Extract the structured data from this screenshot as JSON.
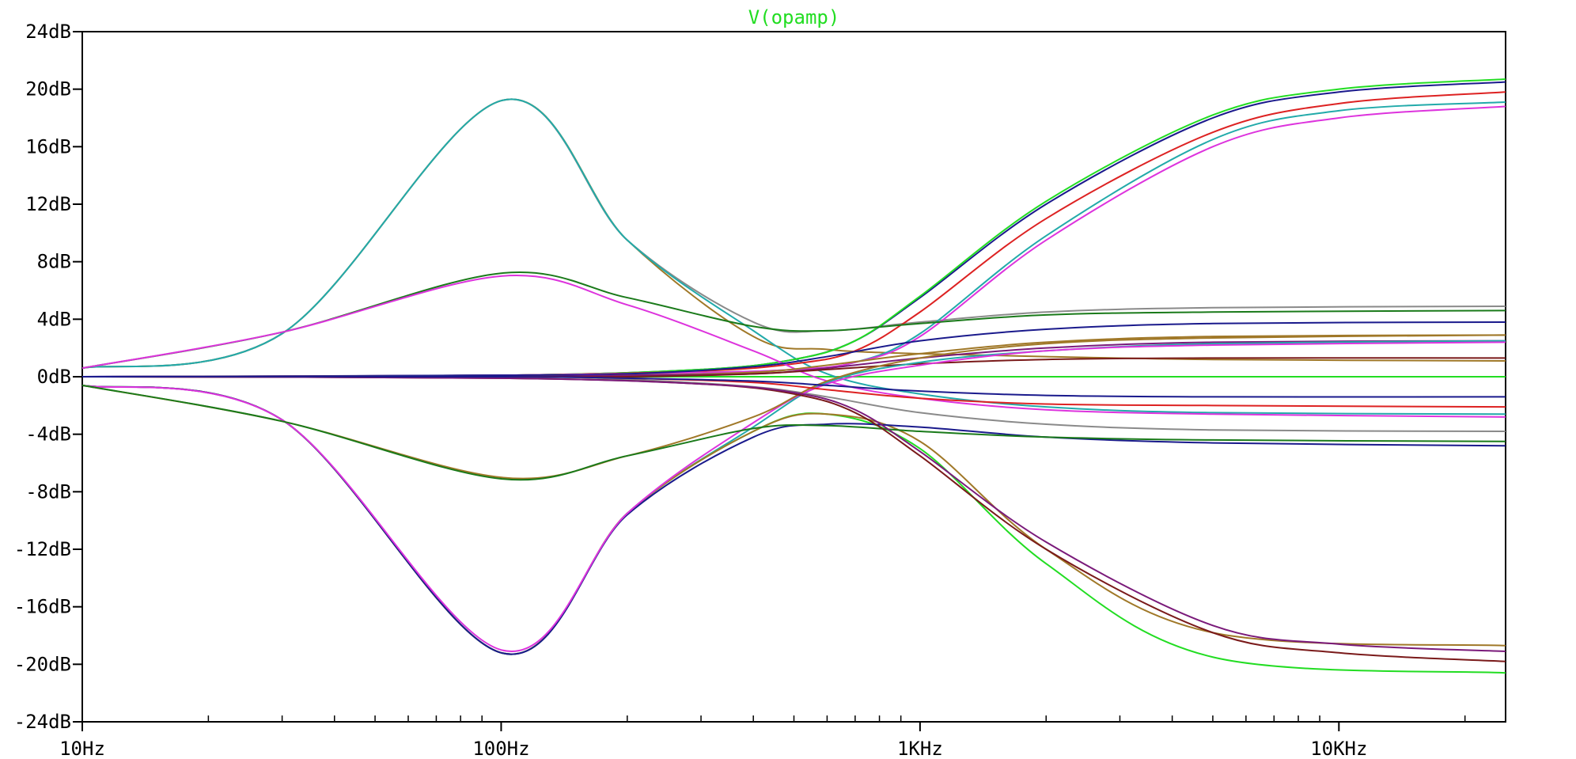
{
  "chart_data": {
    "type": "line",
    "title": "V(opamp)",
    "title_color": "#22dd22",
    "x_scale": "log",
    "xlim": [
      10,
      25000
    ],
    "ylim": [
      -24,
      24
    ],
    "x_ticks": [
      10,
      100,
      1000,
      10000
    ],
    "x_tick_labels": [
      "10Hz",
      "100Hz",
      "1KHz",
      "10KHz"
    ],
    "y_ticks": [
      24,
      20,
      16,
      12,
      8,
      4,
      0,
      -4,
      -8,
      -12,
      -16,
      -20,
      -24
    ],
    "y_tick_labels": [
      "24dB",
      "20dB",
      "16dB",
      "12dB",
      "8dB",
      "4dB",
      "0dB",
      "-4dB",
      "-8dB",
      "-12dB",
      "-16dB",
      "-20dB",
      "-24dB"
    ],
    "grid": false,
    "series": [
      {
        "color": "#22dd22",
        "x": [
          10,
          25000
        ],
        "y": [
          0,
          0
        ]
      },
      {
        "color": "#8a8a8a",
        "x": [
          10,
          30,
          100,
          200,
          400,
          600,
          1000,
          2000,
          5000,
          25000
        ],
        "y": [
          0.6,
          3.0,
          19.2,
          9.5,
          3.8,
          3.2,
          3.8,
          4.5,
          4.8,
          4.9
        ]
      },
      {
        "color": "#a07828",
        "x": [
          10,
          30,
          100,
          200,
          400,
          600,
          1000,
          2000,
          5000,
          25000
        ],
        "y": [
          0.6,
          3.0,
          19.2,
          9.5,
          2.8,
          1.9,
          1.6,
          1.4,
          1.2,
          1.1
        ]
      },
      {
        "color": "#22aaaa",
        "x": [
          10,
          30,
          100,
          200,
          400,
          600,
          1000,
          2000,
          5000,
          25000
        ],
        "y": [
          0.6,
          3.0,
          19.2,
          9.5,
          3.2,
          0.2,
          -1.2,
          -2.1,
          -2.5,
          -2.6
        ]
      },
      {
        "color": "#1a1a8c",
        "x": [
          10,
          100,
          300,
          500,
          700,
          1000,
          2000,
          5000,
          10000,
          25000
        ],
        "y": [
          0.0,
          0.1,
          0.5,
          1.2,
          2.5,
          5.5,
          12.0,
          18.0,
          19.8,
          20.5
        ]
      },
      {
        "color": "#22dd22",
        "x": [
          10,
          100,
          300,
          500,
          700,
          1000,
          2000,
          5000,
          10000,
          25000
        ],
        "y": [
          0.0,
          0.1,
          0.5,
          1.2,
          2.5,
          5.6,
          12.2,
          18.2,
          20.0,
          20.7
        ]
      },
      {
        "color": "#dd2222",
        "x": [
          10,
          100,
          300,
          500,
          700,
          1000,
          2000,
          5000,
          10000,
          25000
        ],
        "y": [
          0.0,
          0.1,
          0.4,
          0.9,
          1.8,
          4.5,
          11.0,
          17.0,
          19.0,
          19.8
        ]
      },
      {
        "color": "#22aaaa",
        "x": [
          10,
          100,
          300,
          500,
          700,
          1000,
          2000,
          5000,
          10000,
          25000
        ],
        "y": [
          0.0,
          0.1,
          0.3,
          0.5,
          1.0,
          3.0,
          9.8,
          16.5,
          18.5,
          19.1
        ]
      },
      {
        "color": "#dd33dd",
        "x": [
          10,
          100,
          300,
          500,
          700,
          1000,
          2000,
          5000,
          10000,
          25000
        ],
        "y": [
          0.0,
          0.1,
          0.3,
          0.5,
          1.0,
          2.8,
          9.5,
          16.0,
          18.0,
          18.8
        ]
      },
      {
        "color": "#1a7a1a",
        "x": [
          10,
          30,
          100,
          200,
          400,
          600,
          1000,
          2000,
          5000,
          25000
        ],
        "y": [
          0.6,
          3.1,
          7.2,
          5.5,
          3.5,
          3.2,
          3.7,
          4.3,
          4.5,
          4.6
        ]
      },
      {
        "color": "#dd33dd",
        "x": [
          10,
          30,
          100,
          200,
          400,
          600,
          1000,
          2000,
          5000,
          25000
        ],
        "y": [
          0.6,
          3.1,
          7.0,
          5.0,
          1.8,
          -0.3,
          -1.5,
          -2.3,
          -2.6,
          -2.8
        ]
      },
      {
        "color": "#1a1a8c",
        "x": [
          10,
          100,
          200,
          400,
          600,
          1000,
          2000,
          5000,
          25000
        ],
        "y": [
          0.0,
          0.1,
          0.2,
          0.7,
          1.4,
          2.5,
          3.3,
          3.7,
          3.8
        ]
      },
      {
        "color": "#a07828",
        "x": [
          10,
          100,
          200,
          400,
          600,
          1000,
          2000,
          5000,
          25000
        ],
        "y": [
          0.0,
          0.0,
          0.1,
          0.3,
          0.8,
          1.6,
          2.4,
          2.8,
          2.9
        ]
      },
      {
        "color": "#7a1a7a",
        "x": [
          10,
          100,
          200,
          400,
          600,
          1000,
          2000,
          5000,
          25000
        ],
        "y": [
          0.0,
          0.0,
          0.1,
          0.2,
          0.6,
          1.3,
          2.0,
          2.4,
          2.5
        ]
      },
      {
        "color": "#7a1a1a",
        "x": [
          10,
          100,
          200,
          400,
          600,
          1000,
          2000,
          5000,
          25000
        ],
        "y": [
          0.0,
          0.0,
          0.0,
          0.2,
          0.5,
          0.9,
          1.2,
          1.3,
          1.3
        ]
      },
      {
        "color": "#8a8a8a",
        "x": [
          10,
          100,
          200,
          400,
          600,
          1000,
          2000,
          5000,
          25000
        ],
        "y": [
          0.0,
          0.0,
          -0.2,
          -0.7,
          -1.4,
          -2.5,
          -3.3,
          -3.7,
          -3.8
        ]
      },
      {
        "color": "#22aaaa",
        "x": [
          10,
          30,
          100,
          200,
          400,
          600,
          1000,
          2000,
          5000,
          25000
        ],
        "y": [
          -0.6,
          -3.0,
          -19.2,
          -9.5,
          -3.5,
          -0.4,
          1.0,
          1.8,
          2.3,
          2.5
        ]
      },
      {
        "color": "#22dd22",
        "x": [
          10,
          30,
          100,
          200,
          400,
          600,
          1000,
          2000,
          5000,
          25000
        ],
        "y": [
          -0.6,
          -3.0,
          -19.2,
          -9.5,
          -3.8,
          -2.6,
          -5.0,
          -13.0,
          -19.5,
          -20.6
        ]
      },
      {
        "color": "#a07828",
        "x": [
          10,
          30,
          100,
          200,
          400,
          600,
          1000,
          2000,
          5000,
          25000
        ],
        "y": [
          -0.6,
          -3.0,
          -19.2,
          -9.5,
          -3.8,
          -2.6,
          -4.5,
          -12.0,
          -17.8,
          -18.7
        ]
      },
      {
        "color": "#1a1a8c",
        "x": [
          10,
          30,
          100,
          200,
          400,
          600,
          1000,
          2000,
          5000,
          25000
        ],
        "y": [
          -0.6,
          -3.0,
          -19.2,
          -9.6,
          -4.2,
          -3.3,
          -3.5,
          -4.2,
          -4.6,
          -4.8
        ]
      },
      {
        "color": "#dd33dd",
        "x": [
          10,
          30,
          100,
          200,
          400,
          600,
          1000,
          2000,
          5000,
          25000
        ],
        "y": [
          -0.6,
          -3.0,
          -19.0,
          -9.5,
          -3.2,
          -0.5,
          0.8,
          1.8,
          2.2,
          2.4
        ]
      },
      {
        "color": "#a07828",
        "x": [
          10,
          30,
          100,
          200,
          400,
          600,
          1000,
          2000,
          5000,
          25000
        ],
        "y": [
          -0.6,
          -3.1,
          -7.0,
          -5.5,
          -2.8,
          -0.3,
          1.3,
          2.3,
          2.7,
          2.9
        ]
      },
      {
        "color": "#1a7a1a",
        "x": [
          10,
          30,
          100,
          200,
          400,
          600,
          1000,
          2000,
          5000,
          25000
        ],
        "y": [
          -0.6,
          -3.1,
          -7.1,
          -5.5,
          -3.6,
          -3.4,
          -3.8,
          -4.2,
          -4.4,
          -4.5
        ]
      },
      {
        "color": "#7a1a1a",
        "x": [
          10,
          100,
          300,
          500,
          700,
          1000,
          2000,
          5000,
          10000,
          25000
        ],
        "y": [
          0.0,
          -0.1,
          -0.5,
          -1.2,
          -2.5,
          -5.5,
          -12.0,
          -17.8,
          -19.2,
          -19.8
        ]
      },
      {
        "color": "#7a1a7a",
        "x": [
          10,
          100,
          300,
          500,
          700,
          1000,
          2000,
          5000,
          10000,
          25000
        ],
        "y": [
          0.0,
          -0.1,
          -0.5,
          -1.1,
          -2.3,
          -5.2,
          -11.5,
          -17.3,
          -18.6,
          -19.1
        ]
      },
      {
        "color": "#dd2222",
        "x": [
          10,
          100,
          200,
          400,
          600,
          1000,
          2000,
          5000,
          25000
        ],
        "y": [
          0.0,
          0.0,
          -0.1,
          -0.4,
          -0.9,
          -1.5,
          -1.9,
          -2.0,
          -2.1
        ]
      },
      {
        "color": "#1a1a8c",
        "x": [
          10,
          100,
          200,
          400,
          600,
          1000,
          2000,
          5000,
          25000
        ],
        "y": [
          0.0,
          0.0,
          -0.1,
          -0.3,
          -0.6,
          -1.0,
          -1.3,
          -1.4,
          -1.4
        ]
      }
    ]
  }
}
